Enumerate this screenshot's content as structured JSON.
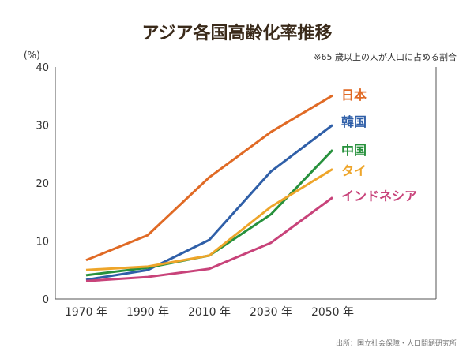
{
  "chart_data": {
    "type": "line",
    "title": "アジア各国高齢化率推移",
    "subtitle": "※65 歳以上の人が人口に占める割合",
    "ylabel": "(%)",
    "source": "出所：国立社会保障・人口問題研究所",
    "categories": [
      "1970 年",
      "1990 年",
      "2010 年",
      "2030 年",
      "2050 年"
    ],
    "ylim": [
      0,
      40
    ],
    "yticks": [
      0,
      10,
      20,
      30,
      40
    ],
    "grid": false,
    "series": [
      {
        "name": "日本",
        "color": "#e06a25",
        "values": [
          6.7,
          11.0,
          21.0,
          28.8,
          35.1
        ]
      },
      {
        "name": "韓国",
        "color": "#2f5fa8",
        "values": [
          3.3,
          5.0,
          10.2,
          22.0,
          30.0
        ]
      },
      {
        "name": "中国",
        "color": "#27913c",
        "values": [
          4.1,
          5.4,
          7.5,
          14.6,
          25.7
        ]
      },
      {
        "name": "タイ",
        "color": "#eea52a",
        "values": [
          5.0,
          5.6,
          7.5,
          15.9,
          22.4
        ]
      },
      {
        "name": "インドネシア",
        "color": "#c8437a",
        "values": [
          3.1,
          3.8,
          5.2,
          9.7,
          17.5
        ]
      }
    ]
  }
}
